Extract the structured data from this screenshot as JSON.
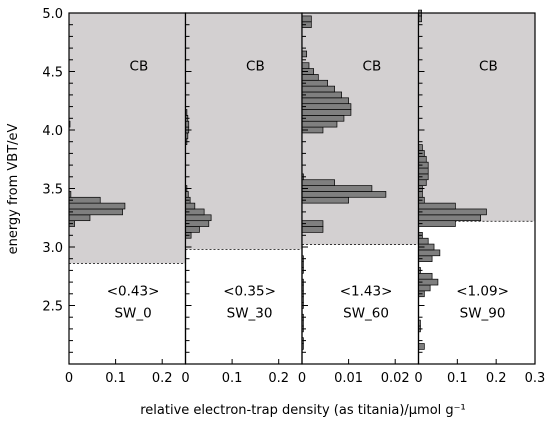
{
  "chart_data": {
    "type": "bar",
    "orientation": "horizontal",
    "ylabel": "energy from VBT/eV",
    "xlabel": "relative electron-trap density (as titania)/μmol g⁻¹",
    "ylim": [
      2.0,
      5.0
    ],
    "y_ticks": [
      "2.5",
      "3.0",
      "3.5",
      "4.0",
      "4.5",
      "5.0"
    ],
    "colors": {
      "cb_fill": "#d3d0d1",
      "bar_fill": "#7f7f7f",
      "bar_stroke": "#000000"
    },
    "panels": [
      {
        "name": "SW_0",
        "total": "<0.43>",
        "cb_label": "CB",
        "cb_edge": 2.86,
        "xlim": [
          0,
          0.25
        ],
        "x_ticks": [
          "0",
          "0.1",
          "0.2"
        ],
        "bars": [
          {
            "y": 3.2,
            "v": 0.012
          },
          {
            "y": 3.25,
            "v": 0.045
          },
          {
            "y": 3.3,
            "v": 0.115
          },
          {
            "y": 3.35,
            "v": 0.12
          },
          {
            "y": 3.4,
            "v": 0.067
          },
          {
            "y": 3.45,
            "v": 0.004
          },
          {
            "y": 4.05,
            "v": 0.002
          }
        ]
      },
      {
        "name": "SW_30",
        "total": "<0.35>",
        "cb_label": "CB",
        "cb_edge": 2.98,
        "xlim": [
          0,
          0.25
        ],
        "x_ticks": [
          "0",
          "0.1",
          "0.2"
        ],
        "bars": [
          {
            "y": 3.1,
            "v": 0.012
          },
          {
            "y": 3.15,
            "v": 0.03
          },
          {
            "y": 3.2,
            "v": 0.05
          },
          {
            "y": 3.25,
            "v": 0.055
          },
          {
            "y": 3.3,
            "v": 0.04
          },
          {
            "y": 3.35,
            "v": 0.02
          },
          {
            "y": 3.4,
            "v": 0.01
          },
          {
            "y": 3.45,
            "v": 0.006
          },
          {
            "y": 3.5,
            "v": 0.003
          },
          {
            "y": 3.9,
            "v": 0.003
          },
          {
            "y": 3.95,
            "v": 0.005
          },
          {
            "y": 4.0,
            "v": 0.007
          },
          {
            "y": 4.05,
            "v": 0.007
          },
          {
            "y": 4.1,
            "v": 0.005
          },
          {
            "y": 4.15,
            "v": 0.003
          }
        ]
      },
      {
        "name": "SW_60",
        "total": "<1.43>",
        "cb_label": "CB",
        "cb_edge": 3.02,
        "xlim": [
          0,
          0.025
        ],
        "x_ticks": [
          "0",
          "0.01",
          "0.02"
        ],
        "bars": [
          {
            "y": 2.15,
            "v": 0.0003
          },
          {
            "y": 2.2,
            "v": 0.0003
          },
          {
            "y": 2.3,
            "v": 0.0003
          },
          {
            "y": 2.35,
            "v": 0.0003
          },
          {
            "y": 2.4,
            "v": 0.0003
          },
          {
            "y": 2.5,
            "v": 0.0003
          },
          {
            "y": 2.55,
            "v": 0.0003
          },
          {
            "y": 2.6,
            "v": 0.0003
          },
          {
            "y": 2.65,
            "v": 0.0003
          },
          {
            "y": 2.7,
            "v": 0.0003
          },
          {
            "y": 2.8,
            "v": 0.0003
          },
          {
            "y": 2.85,
            "v": 0.0003
          },
          {
            "y": 2.9,
            "v": 0.0003
          },
          {
            "y": 3.15,
            "v": 0.0045
          },
          {
            "y": 3.2,
            "v": 0.0045
          },
          {
            "y": 3.4,
            "v": 0.01
          },
          {
            "y": 3.45,
            "v": 0.018
          },
          {
            "y": 3.5,
            "v": 0.015
          },
          {
            "y": 3.55,
            "v": 0.007
          },
          {
            "y": 3.6,
            "v": 0.0003
          },
          {
            "y": 4.0,
            "v": 0.0045
          },
          {
            "y": 4.05,
            "v": 0.0075
          },
          {
            "y": 4.1,
            "v": 0.009
          },
          {
            "y": 4.15,
            "v": 0.0105
          },
          {
            "y": 4.2,
            "v": 0.0105
          },
          {
            "y": 4.25,
            "v": 0.01
          },
          {
            "y": 4.3,
            "v": 0.0085
          },
          {
            "y": 4.35,
            "v": 0.007
          },
          {
            "y": 4.4,
            "v": 0.0055
          },
          {
            "y": 4.45,
            "v": 0.0035
          },
          {
            "y": 4.5,
            "v": 0.0025
          },
          {
            "y": 4.55,
            "v": 0.0015
          },
          {
            "y": 4.65,
            "v": 0.001
          },
          {
            "y": 4.9,
            "v": 0.002
          },
          {
            "y": 4.95,
            "v": 0.002
          }
        ]
      },
      {
        "name": "SW_90",
        "total": "<1.09>",
        "cb_label": "CB",
        "cb_edge": 3.22,
        "xlim": [
          0,
          0.3
        ],
        "x_ticks": [
          "0",
          "0.1",
          "0.2",
          "0.3"
        ],
        "bars": [
          {
            "y": 2.15,
            "v": 0.015
          },
          {
            "y": 2.3,
            "v": 0.005
          },
          {
            "y": 2.35,
            "v": 0.005
          },
          {
            "y": 2.6,
            "v": 0.015
          },
          {
            "y": 2.65,
            "v": 0.03
          },
          {
            "y": 2.7,
            "v": 0.05
          },
          {
            "y": 2.75,
            "v": 0.035
          },
          {
            "y": 2.8,
            "v": 0.005
          },
          {
            "y": 2.9,
            "v": 0.035
          },
          {
            "y": 2.95,
            "v": 0.055
          },
          {
            "y": 3.0,
            "v": 0.04
          },
          {
            "y": 3.05,
            "v": 0.025
          },
          {
            "y": 3.1,
            "v": 0.01
          },
          {
            "y": 3.2,
            "v": 0.095
          },
          {
            "y": 3.25,
            "v": 0.16
          },
          {
            "y": 3.3,
            "v": 0.175
          },
          {
            "y": 3.35,
            "v": 0.095
          },
          {
            "y": 3.4,
            "v": 0.015
          },
          {
            "y": 3.45,
            "v": 0.01
          },
          {
            "y": 3.5,
            "v": 0.01
          },
          {
            "y": 3.55,
            "v": 0.02
          },
          {
            "y": 3.6,
            "v": 0.025
          },
          {
            "y": 3.65,
            "v": 0.025
          },
          {
            "y": 3.7,
            "v": 0.025
          },
          {
            "y": 3.75,
            "v": 0.02
          },
          {
            "y": 3.8,
            "v": 0.015
          },
          {
            "y": 3.85,
            "v": 0.01
          },
          {
            "y": 4.95,
            "v": 0.008
          },
          {
            "y": 5.0,
            "v": 0.008
          }
        ]
      }
    ]
  }
}
